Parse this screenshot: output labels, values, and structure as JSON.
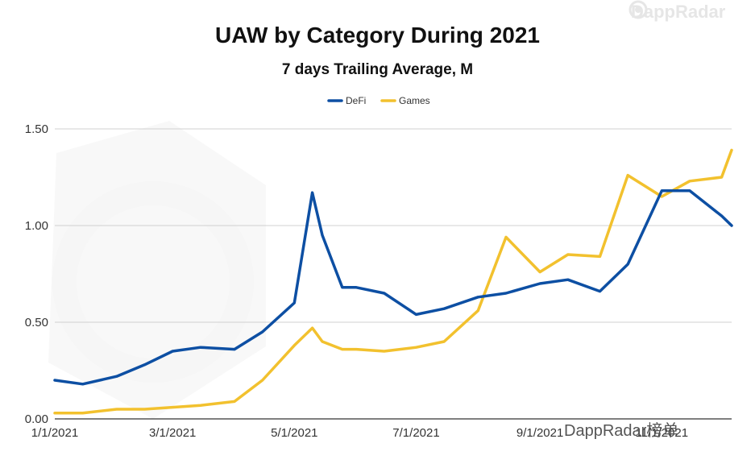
{
  "brand": {
    "name": "DappRadar"
  },
  "watermark": {
    "text": "DappRadar榜单"
  },
  "colors": {
    "defi": "#0d4fa3",
    "games": "#f2c12e",
    "grid": "#d0d0d0",
    "axis": "#333333"
  },
  "chart_data": {
    "type": "line",
    "title": "UAW by Category During 2021",
    "subtitle": "7 days Trailing Average, M",
    "legend_position": "top",
    "grid": true,
    "x_labels": [
      "1/1/2021",
      "3/1/2021",
      "5/1/2021",
      "7/1/2021",
      "9/1/2021",
      "11/1/2021"
    ],
    "x": [
      "2021-01-01",
      "2021-01-15",
      "2021-02-01",
      "2021-02-15",
      "2021-03-01",
      "2021-03-15",
      "2021-04-01",
      "2021-04-15",
      "2021-05-01",
      "2021-05-10",
      "2021-05-15",
      "2021-05-25",
      "2021-06-01",
      "2021-06-15",
      "2021-07-01",
      "2021-07-15",
      "2021-08-01",
      "2021-08-15",
      "2021-09-01",
      "2021-09-15",
      "2021-10-01",
      "2021-10-15",
      "2021-11-01",
      "2021-11-15",
      "2021-12-01",
      "2021-12-06"
    ],
    "y_ticks": [
      0.0,
      0.5,
      1.0,
      1.5
    ],
    "y_tick_labels": [
      "0.00",
      "0.50",
      "1.00",
      "1.50"
    ],
    "ylim": [
      0,
      1.5
    ],
    "series": [
      {
        "name": "DeFi",
        "values": [
          0.2,
          0.18,
          0.22,
          0.28,
          0.35,
          0.37,
          0.36,
          0.45,
          0.6,
          1.17,
          0.95,
          0.68,
          0.68,
          0.65,
          0.54,
          0.57,
          0.63,
          0.65,
          0.7,
          0.72,
          0.66,
          0.8,
          1.18,
          1.18,
          1.05,
          1.0
        ]
      },
      {
        "name": "Games",
        "values": [
          0.03,
          0.03,
          0.05,
          0.05,
          0.06,
          0.07,
          0.09,
          0.2,
          0.38,
          0.47,
          0.4,
          0.36,
          0.36,
          0.35,
          0.37,
          0.4,
          0.56,
          0.94,
          0.76,
          0.85,
          0.84,
          1.26,
          1.15,
          1.23,
          1.25,
          1.39
        ]
      }
    ]
  }
}
